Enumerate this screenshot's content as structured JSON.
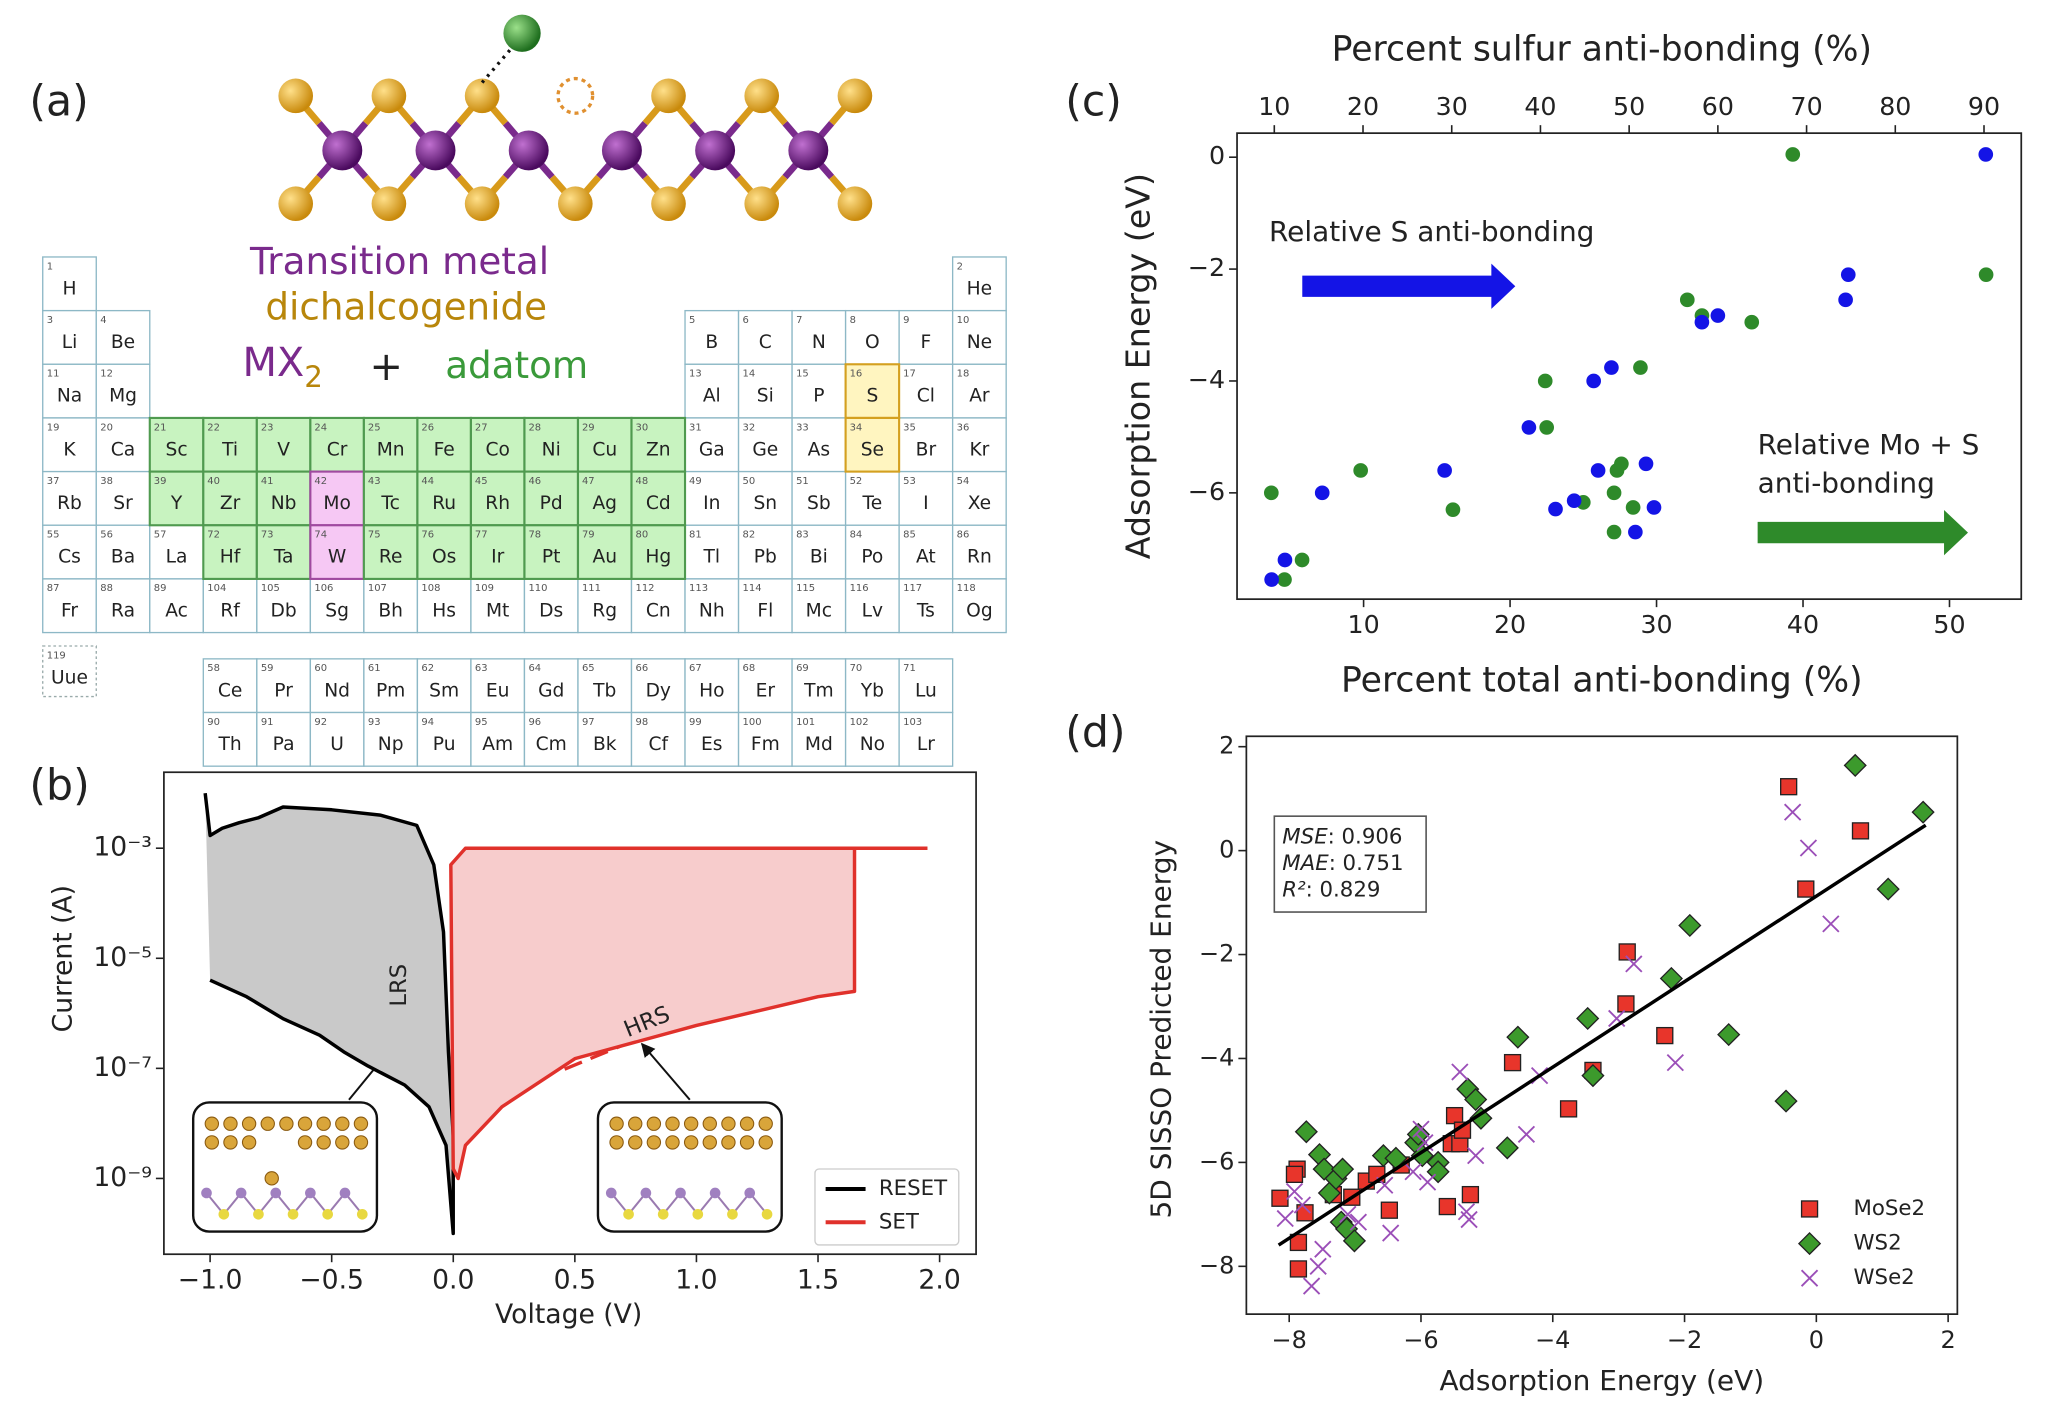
{
  "panel_labels": [
    "(a)",
    "(b)",
    "(c)",
    "(d)"
  ],
  "molecule": {
    "line1": "Transition metal",
    "line2": "dichalcogenide",
    "formula": "MX",
    "subscript": "2",
    "plus": "+",
    "adatom": "adatom"
  },
  "periodic_table": {
    "symbols": [
      "H",
      "He",
      "Li",
      "Be",
      "B",
      "C",
      "N",
      "O",
      "F",
      "Ne",
      "Na",
      "Mg",
      "Al",
      "Si",
      "P",
      "S",
      "Cl",
      "Ar",
      "K",
      "Ca",
      "Sc",
      "Ti",
      "V",
      "Cr",
      "Mn",
      "Fe",
      "Co",
      "Ni",
      "Cu",
      "Zn",
      "Ga",
      "Ge",
      "As",
      "Se",
      "Br",
      "Kr",
      "Rb",
      "Sr",
      "Y",
      "Zr",
      "Nb",
      "Mo",
      "Tc",
      "Ru",
      "Rh",
      "Pd",
      "Ag",
      "Cd",
      "In",
      "Sn",
      "Sb",
      "Te",
      "I",
      "Xe",
      "Cs",
      "Ba",
      "La",
      "Ce",
      "Pr",
      "Nd",
      "Pm",
      "Sm",
      "Eu",
      "Gd",
      "Tb",
      "Dy",
      "Ho",
      "Er",
      "Tm",
      "Yb",
      "Lu",
      "Hf",
      "Ta",
      "W",
      "Re",
      "Os",
      "Ir",
      "Pt",
      "Au",
      "Hg",
      "Tl",
      "Pb",
      "Bi",
      "Po",
      "At",
      "Rn",
      "Fr",
      "Ra",
      "Ac",
      "Th",
      "Pa",
      "U",
      "Np",
      "Pu",
      "Am",
      "Cm",
      "Bk",
      "Cf",
      "Es",
      "Fm",
      "Md",
      "No",
      "Lr",
      "Rf",
      "Db",
      "Sg",
      "Bh",
      "Hs",
      "Mt",
      "Ds",
      "Rg",
      "Cn",
      "Nh",
      "Fl",
      "Mc",
      "Lv",
      "Ts",
      "Og",
      "Uue"
    ],
    "numbers": [
      1,
      2,
      3,
      4,
      5,
      6,
      7,
      8,
      9,
      10,
      11,
      12,
      13,
      14,
      15,
      16,
      17,
      18,
      19,
      20,
      21,
      22,
      23,
      24,
      25,
      26,
      27,
      28,
      29,
      30,
      31,
      32,
      33,
      34,
      35,
      36,
      37,
      38,
      39,
      40,
      41,
      42,
      43,
      44,
      45,
      46,
      47,
      48,
      49,
      50,
      51,
      52,
      53,
      54,
      55,
      56,
      57,
      58,
      59,
      60,
      61,
      62,
      63,
      64,
      65,
      66,
      67,
      68,
      69,
      70,
      71,
      72,
      73,
      74,
      75,
      76,
      77,
      78,
      79,
      80,
      81,
      82,
      83,
      84,
      85,
      86,
      87,
      88,
      89,
      90,
      91,
      92,
      93,
      94,
      95,
      96,
      97,
      98,
      99,
      100,
      101,
      102,
      103,
      104,
      105,
      106,
      107,
      108,
      109,
      110,
      111,
      112,
      113,
      114,
      115,
      116,
      117,
      118,
      119
    ],
    "highlights": [
      {
        "color": "#c8f3c0",
        "border": "#4f9a4f",
        "symbols": [
          "Sc",
          "Ti",
          "V",
          "Cr",
          "Mn",
          "Fe",
          "Co",
          "Ni",
          "Cu",
          "Zn",
          "Y",
          "Zr",
          "Nb",
          "Tc",
          "Ru",
          "Rh",
          "Pd",
          "Ag",
          "Cd",
          "Hf",
          "Ta",
          "Re",
          "Os",
          "Ir",
          "Pt",
          "Au",
          "Hg"
        ]
      },
      {
        "color": "#f6c8f4",
        "border": "#a04aa0",
        "symbols": [
          "Mo",
          "W"
        ]
      },
      {
        "color": "#fff5c0",
        "border": "#d4a020",
        "symbols": [
          "S",
          "Se"
        ]
      }
    ]
  },
  "chart_data": [
    {
      "type": "line",
      "x_label": "Voltage (V)",
      "y_label": "Current (A)",
      "log_y": true,
      "xlim": [
        -1.19,
        2.15
      ],
      "xticks": [
        {
          "value": -1,
          "label": "−1.0"
        },
        {
          "value": -0.5,
          "label": "−0.5"
        },
        {
          "value": 0,
          "label": "0.0"
        },
        0.5,
        {
          "value": 1,
          "label": "1.0"
        },
        1.5,
        {
          "value": 2,
          "label": "2.0"
        }
      ],
      "ylim": [
        4.2e-11,
        0.024
      ],
      "yticks": [
        {
          "value": 1e-09,
          "label": "10⁻⁹"
        },
        {
          "value": 1e-07,
          "label": "10⁻⁷"
        },
        {
          "value": 1e-05,
          "label": "10⁻⁵"
        },
        {
          "value": 0.001,
          "label": "10⁻³"
        }
      ],
      "legend": "lower right",
      "series": [
        {
          "name": "RESET",
          "color": "#000000",
          "fill": "#c9c9c9",
          "x": [
            -1.02,
            -1.0,
            -0.95,
            -0.88,
            -0.8,
            -0.7,
            -0.5,
            -0.3,
            -0.15,
            -0.08,
            -0.04,
            -0.02,
            0.0,
            0.0,
            -0.03,
            -0.1,
            -0.2,
            -0.35,
            -0.45,
            -0.55,
            -0.7,
            -0.85,
            -1.0
          ],
          "values": [
            0.01,
            0.0017,
            0.0023,
            0.0029,
            0.0036,
            0.0056,
            0.005,
            0.004,
            0.0026,
            0.0005,
            3e-05,
            2e-07,
            6e-09,
            1e-10,
            4e-09,
            2e-08,
            5e-08,
            1.1e-07,
            2e-07,
            4e-07,
            8e-07,
            2e-06,
            4e-06
          ]
        },
        {
          "name": "SET",
          "color": "#e0312b",
          "fill": "#f7cccc",
          "x": [
            1.95,
            1.65,
            1.65,
            1.5,
            1.0,
            0.5,
            0.2,
            0.05,
            0.02,
            0.0,
            -0.01,
            0.05,
            1.65
          ],
          "values": [
            0.001,
            0.001,
            2.5e-06,
            2e-06,
            6e-07,
            1.5e-07,
            2e-08,
            4e-09,
            1e-09,
            1.5e-09,
            0.0005,
            0.001,
            0.001
          ]
        }
      ],
      "annotations": [
        {
          "text": "LRS"
        },
        {
          "text": "HRS"
        }
      ]
    },
    {
      "type": "scatter",
      "x_label": "Percent total anti-bonding (%)",
      "x2_label": "Percent sulfur anti-bonding (%)",
      "y_label": "Adsorption Energy (eV)",
      "x_color": "#2e8a2a",
      "x2_color": "#1a1ae0",
      "xlim": [
        1.36,
        54.9
      ],
      "xticks": [
        10,
        20,
        30,
        40,
        50
      ],
      "x2lim": [
        5.8,
        94.2
      ],
      "x2ticks": [
        10,
        20,
        30,
        40,
        50,
        60,
        70,
        80,
        90
      ],
      "ylim": [
        -7.9,
        0.43
      ],
      "yticks": [
        0,
        {
          "value": -2,
          "label": "−2"
        },
        {
          "value": -4,
          "label": "−4"
        },
        {
          "value": -6,
          "label": "−6"
        }
      ],
      "series": [
        {
          "color": "#2e8a2a",
          "axis": "x",
          "x": [
            3.7,
            4.6,
            5.8,
            9.8,
            16.1,
            22.4,
            22.5,
            25.0,
            27.1,
            27.1,
            27.6,
            27.3,
            28.4,
            28.9,
            32.1,
            33.1,
            36.5,
            39.3,
            52.5
          ],
          "values": [
            -6.0,
            -7.55,
            -7.2,
            -5.6,
            -6.3,
            -4.0,
            -4.83,
            -6.17,
            -6.0,
            -6.7,
            -5.48,
            -5.6,
            -6.26,
            -3.76,
            -2.55,
            -2.83,
            -2.95,
            0.05,
            -2.1
          ]
        },
        {
          "color": "#1414e6",
          "axis": "x2",
          "x": [
            9.7,
            11.2,
            15.4,
            29.2,
            38.7,
            41.7,
            43.8,
            46.0,
            46.5,
            48.0,
            50.7,
            51.9,
            52.8,
            58.2,
            60.0,
            74.4,
            74.7,
            90.2
          ],
          "values": [
            -7.55,
            -7.2,
            -6.0,
            -5.6,
            -4.83,
            -6.29,
            -6.14,
            -4.0,
            -5.6,
            -3.76,
            -6.7,
            -5.48,
            -6.26,
            -2.95,
            -2.83,
            -2.55,
            -2.1,
            0.05
          ]
        }
      ],
      "annotations": [
        {
          "lines": [
            "Relative S anti-bonding"
          ],
          "arrow_color": "#1414e6"
        },
        {
          "lines": [
            "Relative Mo + S",
            "anti-bonding"
          ],
          "arrow_color": "#2e8a2a"
        }
      ]
    },
    {
      "type": "scatter",
      "x_label": "Adsorption Energy (eV)",
      "y_label": "5D SISSO Predicted Energy",
      "xlim": [
        -8.65,
        2.14
      ],
      "xticks": [
        {
          "value": -8,
          "label": "−8"
        },
        {
          "value": -6,
          "label": "−6"
        },
        {
          "value": -4,
          "label": "−4"
        },
        {
          "value": -2,
          "label": "−2"
        },
        0,
        2
      ],
      "ylim": [
        -8.92,
        2.2
      ],
      "yticks": [
        2,
        0,
        {
          "value": -2,
          "label": "−2"
        },
        {
          "value": -4,
          "label": "−4"
        },
        {
          "value": -6,
          "label": "−6"
        },
        {
          "value": -8,
          "label": "−8"
        }
      ],
      "legend": "lower right",
      "series": [
        {
          "name": "MoSe2",
          "marker": "square",
          "color": "#e8352b",
          "x": [
            -8.14,
            -7.88,
            -7.92,
            -7.86,
            -7.86,
            -7.76,
            -7.33,
            -7.05,
            -6.83,
            -6.67,
            -6.48,
            -6.3,
            -5.6,
            -5.54,
            -5.49,
            -5.41,
            -5.37,
            -5.25,
            -4.61,
            -3.76,
            -3.39,
            -2.87,
            -2.89,
            -2.3,
            -0.42,
            -0.16,
            0.67
          ],
          "values": [
            -6.69,
            -6.13,
            -6.23,
            -7.54,
            -8.05,
            -6.97,
            -6.62,
            -6.67,
            -6.36,
            -6.23,
            -6.92,
            -6.05,
            -6.85,
            -5.64,
            -5.1,
            -5.64,
            -5.38,
            -6.62,
            -4.08,
            -4.97,
            -4.23,
            -1.95,
            -2.95,
            -3.56,
            1.23,
            -0.74,
            0.38
          ]
        },
        {
          "name": "WS2",
          "marker": "diamond",
          "color": "#3c9a2c",
          "x": [
            -7.74,
            -7.54,
            -7.47,
            -7.39,
            -7.29,
            -7.19,
            -7.21,
            -7.13,
            -7.01,
            -6.57,
            -6.38,
            -6.08,
            -5.98,
            -5.74,
            -5.74,
            -5.29,
            -5.17,
            -5.09,
            -4.69,
            -4.53,
            -3.47,
            -3.39,
            -2.2,
            -1.92,
            -1.33,
            -0.46,
            0.59,
            1.09,
            1.62,
            -6.04
          ],
          "values": [
            -5.41,
            -5.85,
            -6.13,
            -6.59,
            -6.31,
            -6.13,
            -7.15,
            -7.28,
            -7.51,
            -5.87,
            -5.92,
            -5.62,
            -5.87,
            -6.0,
            -6.18,
            -4.59,
            -4.79,
            -5.15,
            -5.72,
            -3.59,
            -3.23,
            -4.33,
            -2.46,
            -1.44,
            -3.54,
            -4.82,
            1.64,
            -0.74,
            0.74,
            -5.46
          ]
        },
        {
          "name": "WSe2",
          "marker": "x",
          "color": "#9b4fb8",
          "x": [
            -8.06,
            -7.92,
            -7.8,
            -7.56,
            -7.49,
            -7.11,
            -6.95,
            -6.55,
            -6.46,
            -6.12,
            -6.0,
            -5.94,
            -5.41,
            -5.31,
            -5.27,
            -5.17,
            -4.4,
            -4.2,
            -3.03,
            -2.77,
            -2.14,
            -0.36,
            -0.12,
            0.22,
            -5.9,
            -7.66
          ],
          "values": [
            -7.08,
            -6.56,
            -6.82,
            -8.0,
            -7.67,
            -7.0,
            -7.15,
            -6.44,
            -7.36,
            -6.18,
            -5.36,
            -5.62,
            -4.26,
            -6.95,
            -7.1,
            -5.87,
            -5.46,
            -4.33,
            -3.23,
            -2.18,
            -4.08,
            0.74,
            0.05,
            -1.41,
            -6.38,
            -8.38
          ]
        }
      ],
      "fit_line": {
        "color": "#000000",
        "x": [
          -8.16,
          1.66
        ],
        "values": [
          -7.59,
          0.49
        ]
      },
      "stats": [
        {
          "label": "MSE",
          "separator": ":",
          "value": 0.906
        },
        {
          "label": "MAE",
          "separator": ":",
          "value": 0.751
        },
        {
          "label": "R²",
          "separator": ":",
          "value": 0.829
        }
      ]
    }
  ]
}
